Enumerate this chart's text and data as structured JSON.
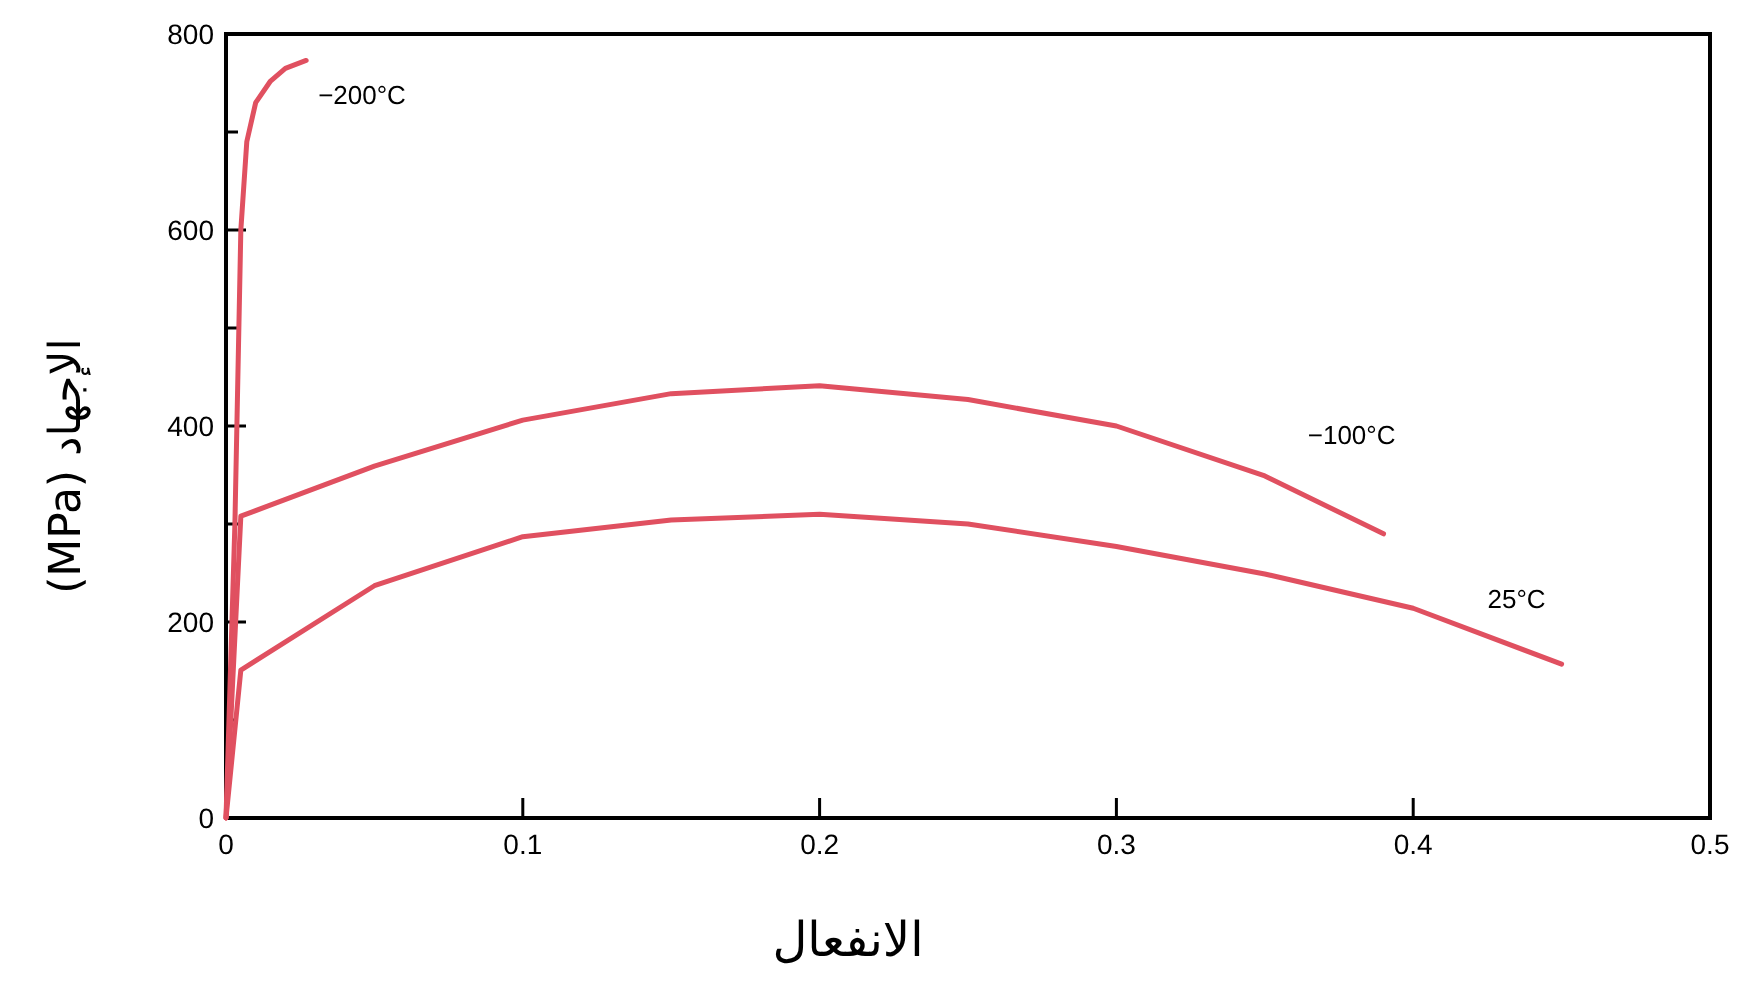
{
  "chart_data": {
    "type": "line",
    "xlabel": "الانفعال",
    "ylabel": "الإجهاد (MPa)",
    "xlim": [
      0,
      0.5
    ],
    "ylim": [
      0,
      800
    ],
    "xticks": [
      0,
      0.1,
      0.2,
      0.3,
      0.4,
      0.5
    ],
    "yticks": [
      0,
      {
        "value": 100,
        "label": null
      },
      200,
      {
        "value": 300,
        "label": null
      },
      400,
      {
        "value": 500,
        "label": null
      },
      600,
      {
        "value": 700,
        "label": null
      },
      800
    ],
    "series": [
      {
        "name": "−200°C",
        "color": "#e05060",
        "x": [
          0,
          0.003,
          0.005,
          0.007,
          0.01,
          0.015,
          0.02,
          0.027
        ],
        "values": [
          0,
          300,
          600,
          690,
          730,
          752,
          765,
          773
        ]
      },
      {
        "name": "−100°C",
        "color": "#e05060",
        "x": [
          0,
          0.005,
          0.05,
          0.1,
          0.15,
          0.2,
          0.25,
          0.3,
          0.35,
          0.39
        ],
        "values": [
          0,
          308,
          359,
          406,
          433,
          441,
          427,
          400,
          349,
          290
        ]
      },
      {
        "name": "25°C",
        "color": "#e05060",
        "x": [
          0,
          0.005,
          0.05,
          0.1,
          0.15,
          0.2,
          0.25,
          0.3,
          0.35,
          0.4,
          0.45
        ],
        "values": [
          0,
          151,
          237,
          287,
          304,
          310,
          300,
          277,
          249,
          214,
          157
        ]
      }
    ]
  }
}
